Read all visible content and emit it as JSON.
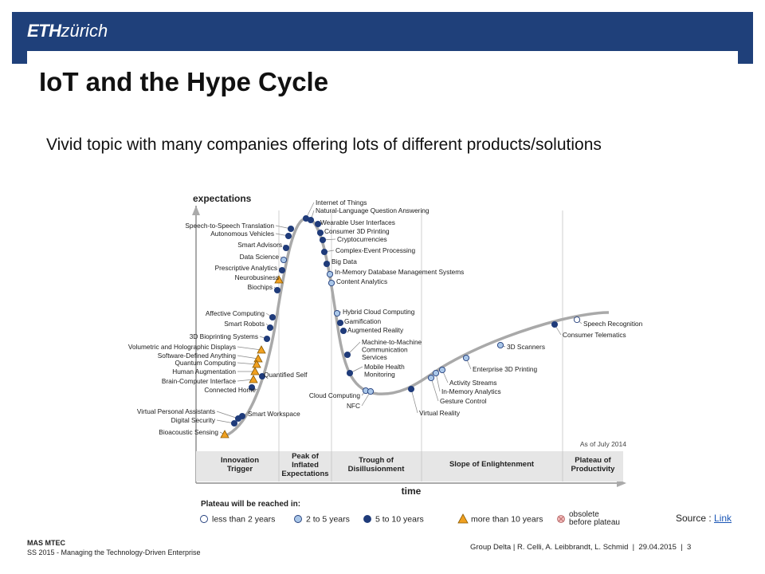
{
  "logo": {
    "bold": "ETH",
    "rest": "zürich"
  },
  "title": "IoT and the Hype Cycle",
  "subtitle": "Vivid topic with many companies offering lots of different products/solutions",
  "source": {
    "label": "Source : ",
    "link": "Link"
  },
  "footer": {
    "program": "MAS MTEC",
    "course": "SS 2015 - Managing the Technology-Driven Enterprise",
    "authors": "Group Delta | R. Celli, A. Leibbrandt, L. Schmid",
    "date": "29.04.2015",
    "page": "3"
  },
  "chart_data": {
    "type": "diagram",
    "ylabel": "expectations",
    "xlabel": "time",
    "note": "As of July 2014",
    "phases": [
      {
        "label": "Innovation Trigger",
        "lines": [
          "Innovation",
          "Trigger"
        ]
      },
      {
        "label": "Peak of Inflated Expectations",
        "lines": [
          "Peak of",
          "Inflated",
          "Expectations"
        ]
      },
      {
        "label": "Trough of Disillusionment",
        "lines": [
          "Trough of",
          "Disillusionment"
        ]
      },
      {
        "label": "Slope of Enlightenment",
        "lines": [
          "Slope of Enlightenment"
        ]
      },
      {
        "label": "Plateau of Productivity",
        "lines": [
          "Plateau of",
          "Productivity"
        ]
      }
    ],
    "legend_title": "Plateau will be reached in:",
    "legend": [
      {
        "key": "lt2",
        "label": "less than 2 years",
        "color": "#ffffff"
      },
      {
        "key": "2to5",
        "label": "2 to 5 years",
        "color": "#a9c6e8"
      },
      {
        "key": "5to10",
        "label": "5 to 10 years",
        "color": "#1f3b7a"
      },
      {
        "key": "gt10",
        "label": "more than 10 years",
        "color": "#f0a020"
      },
      {
        "key": "obsolete",
        "label": "obsolete before plateau",
        "color": "#f2b8b8"
      }
    ],
    "technologies": [
      {
        "name": "Internet of Things",
        "type": "5to10"
      },
      {
        "name": "Natural-Language Question Answering",
        "type": "5to10"
      },
      {
        "name": "Wearable User Interfaces",
        "type": "5to10"
      },
      {
        "name": "Consumer 3D Printing",
        "type": "5to10"
      },
      {
        "name": "Cryptocurrencies",
        "type": "5to10"
      },
      {
        "name": "Complex-Event Processing",
        "type": "5to10"
      },
      {
        "name": "Big Data",
        "type": "5to10"
      },
      {
        "name": "In-Memory Database Management Systems",
        "type": "2to5"
      },
      {
        "name": "Content Analytics",
        "type": "2to5"
      },
      {
        "name": "Hybrid Cloud Computing",
        "type": "2to5"
      },
      {
        "name": "Gamification",
        "type": "5to10"
      },
      {
        "name": "Augmented Reality",
        "type": "5to10"
      },
      {
        "name": "Machine-to-Machine Communication Services",
        "type": "5to10"
      },
      {
        "name": "Mobile Health Monitoring",
        "type": "5to10"
      },
      {
        "name": "Cloud Computing",
        "type": "2to5"
      },
      {
        "name": "NFC",
        "type": "2to5"
      },
      {
        "name": "Virtual Reality",
        "type": "5to10"
      },
      {
        "name": "Gesture Control",
        "type": "2to5"
      },
      {
        "name": "In-Memory Analytics",
        "type": "2to5"
      },
      {
        "name": "Activity Streams",
        "type": "2to5"
      },
      {
        "name": "Enterprise 3D Printing",
        "type": "2to5"
      },
      {
        "name": "3D Scanners",
        "type": "2to5"
      },
      {
        "name": "Consumer Telematics",
        "type": "5to10"
      },
      {
        "name": "Speech Recognition",
        "type": "lt2"
      },
      {
        "name": "Speech-to-Speech Translation",
        "type": "5to10"
      },
      {
        "name": "Autonomous Vehicles",
        "type": "5to10"
      },
      {
        "name": "Smart Advisors",
        "type": "5to10"
      },
      {
        "name": "Data Science",
        "type": "2to5"
      },
      {
        "name": "Prescriptive Analytics",
        "type": "5to10"
      },
      {
        "name": "Neurobusiness",
        "type": "gt10"
      },
      {
        "name": "Biochips",
        "type": "5to10"
      },
      {
        "name": "Affective Computing",
        "type": "5to10"
      },
      {
        "name": "Smart Robots",
        "type": "5to10"
      },
      {
        "name": "3D Bioprinting Systems",
        "type": "5to10"
      },
      {
        "name": "Volumetric and Holographic Displays",
        "type": "gt10"
      },
      {
        "name": "Software-Defined Anything",
        "type": "gt10"
      },
      {
        "name": "Quantum Computing",
        "type": "gt10"
      },
      {
        "name": "Human Augmentation",
        "type": "gt10"
      },
      {
        "name": "Brain-Computer Interface",
        "type": "gt10"
      },
      {
        "name": "Quantified Self",
        "type": "5to10"
      },
      {
        "name": "Connected Home",
        "type": "5to10"
      },
      {
        "name": "Smart Workspace",
        "type": "5to10"
      },
      {
        "name": "Virtual Personal Assistants",
        "type": "5to10"
      },
      {
        "name": "Digital Security",
        "type": "5to10"
      },
      {
        "name": "Bioacoustic Sensing",
        "type": "gt10"
      }
    ]
  }
}
